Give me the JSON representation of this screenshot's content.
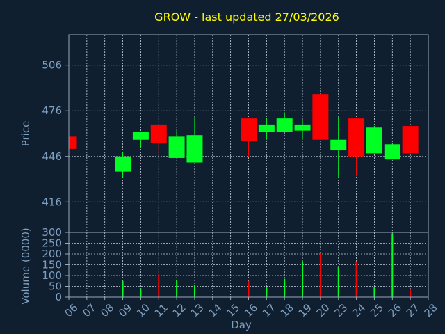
{
  "colors": {
    "background": "#0f1f30",
    "title": "#ffff00",
    "axis_text": "#7f9fbf",
    "frame": "#9aaabb",
    "grid": "#c8d2dc",
    "up": "#00ff22",
    "down": "#ff0000"
  },
  "chart_data": {
    "type": "candlestick",
    "title": "GROW - last updated 27/03/2026",
    "grid": true,
    "price_panel": {
      "ylabel": "Price",
      "ylim": [
        396,
        526
      ],
      "yticks": [
        416,
        446,
        476,
        506
      ]
    },
    "volume_panel": {
      "ylabel": "Volume (0000)",
      "ylim": [
        0,
        300
      ],
      "yticks": [
        0,
        50,
        100,
        150,
        200,
        250,
        300
      ]
    },
    "xlabel": "Day",
    "x_ticks": [
      "06",
      "07",
      "08",
      "09",
      "10",
      "11",
      "12",
      "13",
      "14",
      "15",
      "16",
      "17",
      "18",
      "19",
      "20",
      "23",
      "24",
      "25",
      "26",
      "27",
      "28"
    ],
    "candles": [
      {
        "day": "06",
        "open": 459,
        "close": 451,
        "high": 459,
        "low": 451,
        "volume": 0
      },
      {
        "day": "09",
        "open": 436,
        "close": 446,
        "high": 449,
        "low": 432,
        "volume": 75
      },
      {
        "day": "10",
        "open": 457,
        "close": 462,
        "high": 462,
        "low": 452,
        "volume": 40
      },
      {
        "day": "11",
        "open": 467,
        "close": 455,
        "high": 467,
        "low": 448,
        "volume": 105
      },
      {
        "day": "12",
        "open": 445,
        "close": 459,
        "high": 463,
        "low": 445,
        "volume": 80
      },
      {
        "day": "13",
        "open": 442,
        "close": 460,
        "high": 472,
        "low": 442,
        "volume": 55
      },
      {
        "day": "16",
        "open": 471,
        "close": 456,
        "high": 471,
        "low": 446,
        "volume": 75
      },
      {
        "day": "17",
        "open": 462,
        "close": 467,
        "high": 471,
        "low": 457,
        "volume": 45
      },
      {
        "day": "18",
        "open": 462,
        "close": 471,
        "high": 475,
        "low": 462,
        "volume": 85
      },
      {
        "day": "19",
        "open": 463,
        "close": 467,
        "high": 470,
        "low": 457,
        "volume": 165
      },
      {
        "day": "20",
        "open": 487,
        "close": 457,
        "high": 487,
        "low": 457,
        "volume": 200
      },
      {
        "day": "23",
        "open": 450,
        "close": 457,
        "high": 472,
        "low": 432,
        "volume": 140
      },
      {
        "day": "24",
        "open": 471,
        "close": 446,
        "high": 471,
        "low": 433,
        "volume": 165
      },
      {
        "day": "25",
        "open": 448,
        "close": 465,
        "high": 466,
        "low": 448,
        "volume": 45
      },
      {
        "day": "26",
        "open": 444,
        "close": 454,
        "high": 454,
        "low": 444,
        "volume": 295
      },
      {
        "day": "27",
        "open": 466,
        "close": 448,
        "high": 466,
        "low": 448,
        "volume": 35
      }
    ]
  }
}
